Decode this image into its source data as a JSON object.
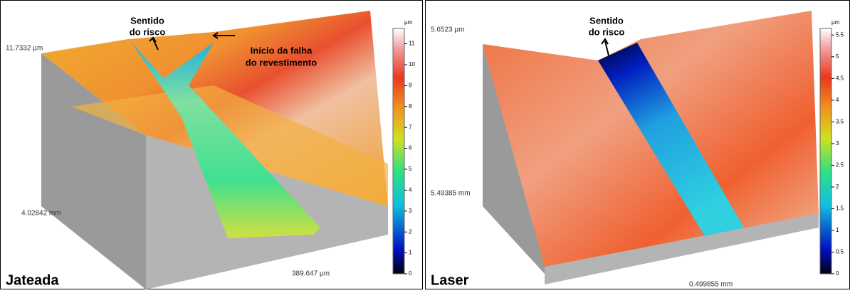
{
  "panels": [
    {
      "label": "Jateada",
      "annotations": [
        {
          "lines": [
            "Sentido",
            "do risco"
          ]
        },
        {
          "lines": [
            "Início da falha",
            "do revestimento"
          ]
        }
      ],
      "height": "11.7332 µm",
      "length": "4.02842 mm",
      "width": "389.647 µm",
      "colorbar": {
        "unit": "µm",
        "lim": [
          0,
          11.7332
        ],
        "ticks": [
          0,
          1,
          2,
          3,
          4,
          5,
          6,
          7,
          8,
          9,
          10,
          11
        ]
      }
    },
    {
      "label": "Laser",
      "annotations": [
        {
          "lines": [
            "Sentido",
            "do risco"
          ]
        }
      ],
      "height": "5.6523 µm",
      "length": "5.49385 mm",
      "width": "0.499855 mm",
      "colorbar": {
        "unit": "µm",
        "lim": [
          0,
          5.6523
        ],
        "ticks": [
          0,
          0.5,
          1,
          1.5,
          2,
          2.5,
          3,
          3.5,
          4,
          4.5,
          5,
          5.5
        ]
      }
    }
  ]
}
